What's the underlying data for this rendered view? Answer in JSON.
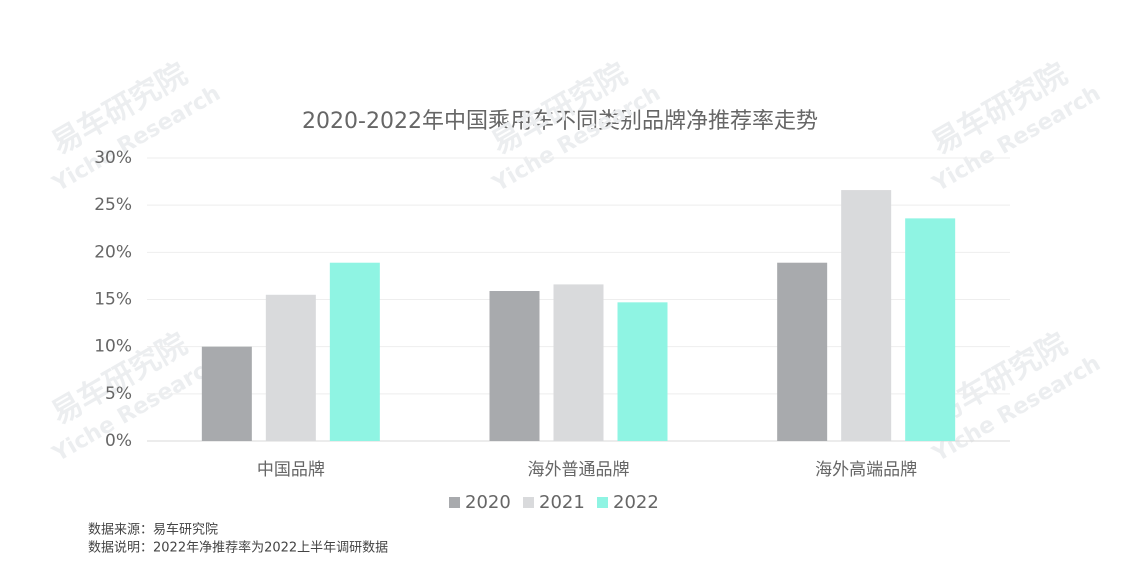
{
  "chart_data": {
    "type": "bar",
    "title": "2020-2022年中国乘用车不同类别品牌净推荐率走势",
    "categories": [
      "中国品牌",
      "海外普通品牌",
      "海外高端品牌"
    ],
    "series": [
      {
        "name": "2020",
        "color": "#a8aaad",
        "values": [
          10,
          15.9,
          18.9
        ]
      },
      {
        "name": "2021",
        "color": "#d9dadc",
        "values": [
          15.5,
          16.6,
          26.6
        ]
      },
      {
        "name": "2022",
        "color": "#8ff4e3",
        "values": [
          18.9,
          14.7,
          23.6
        ]
      }
    ],
    "ylim": [
      0,
      30
    ],
    "yticks": [
      {
        "value": 0,
        "label": "0%"
      },
      {
        "value": 5,
        "label": "5%"
      },
      {
        "value": 10,
        "label": "10%"
      },
      {
        "value": 15,
        "label": "15%"
      },
      {
        "value": 20,
        "label": "20%"
      },
      {
        "value": 25,
        "label": "25%"
      },
      {
        "value": 30,
        "label": "30%"
      }
    ],
    "grid": true,
    "legend": "bottom",
    "watermark": [
      "易车研究院",
      "Yiche Research"
    ],
    "notes": [
      "数据来源：易车研究院",
      "数据说明：2022年净推荐率为2022上半年调研数据"
    ]
  }
}
